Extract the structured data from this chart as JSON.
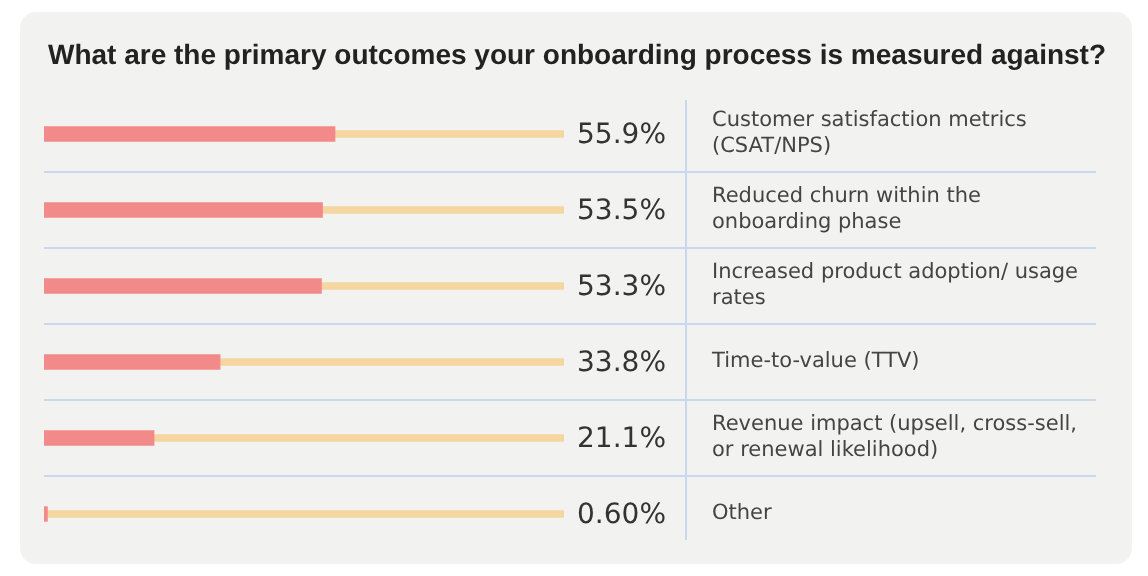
{
  "chart_data": {
    "type": "bar",
    "orientation": "horizontal",
    "stacked": true,
    "title": "What are the primary outcomes your onboarding process is measured against?",
    "categories": [
      "Customer satisfaction metrics (CSAT/NPS)",
      "Reduced churn within the onboarding phase",
      "Increased product adoption/ usage rates",
      "Time-to-value (TTV)",
      "Revenue impact (upsell, cross-sell, or renewal likelihood)",
      "Other"
    ],
    "series": [
      {
        "color": "#f28a8a",
        "values": [
          55.9,
          53.5,
          53.3,
          33.8,
          21.1,
          0.6
        ],
        "value_labels": [
          "55.9%",
          "53.5%",
          "53.3%",
          "33.8%",
          "21.1%",
          "0.60%"
        ]
      },
      {
        "color": "#f5d6a0",
        "values": [
          44.1,
          46.5,
          46.7,
          66.2,
          78.9,
          99.4
        ]
      }
    ],
    "xlim": [
      0,
      100
    ],
    "tick_labels": "y",
    "grid": "y",
    "legend": false
  }
}
